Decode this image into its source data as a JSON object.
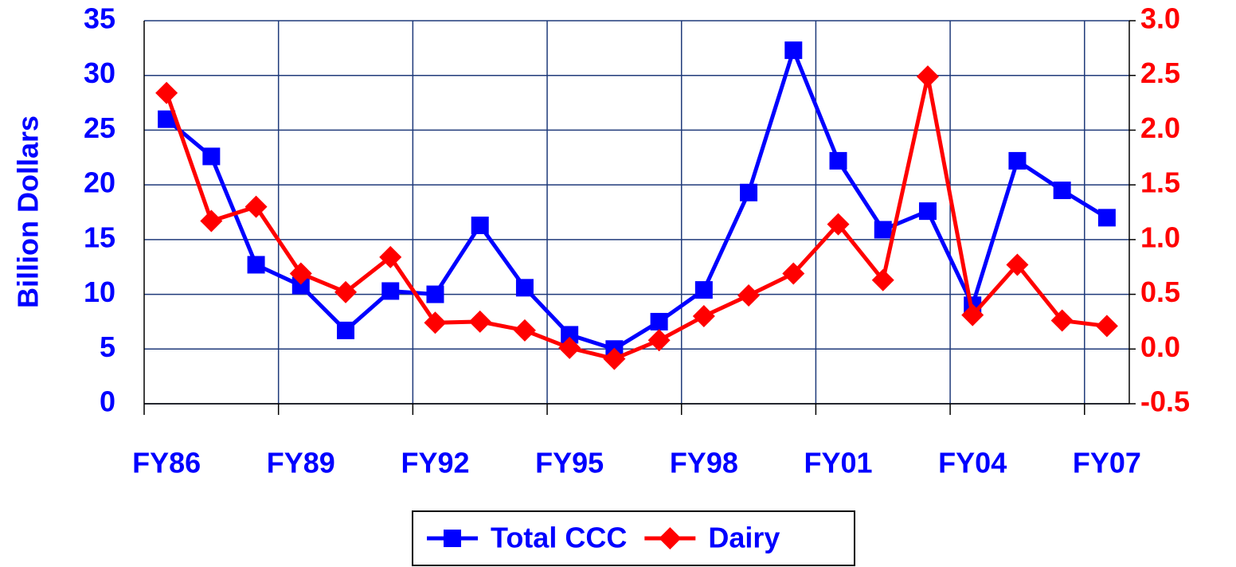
{
  "chart_data": {
    "type": "line",
    "y_label": "Billion Dollars",
    "categories": [
      "FY86",
      null,
      null,
      "FY89",
      null,
      null,
      "FY92",
      null,
      null,
      "FY95",
      null,
      null,
      "FY98",
      null,
      null,
      "FY01",
      null,
      null,
      "FY04",
      null,
      null,
      "FY07"
    ],
    "series": [
      {
        "name": "Total CCC",
        "color": "#0000ff",
        "marker": "square",
        "axis": "y",
        "values": [
          26,
          22.6,
          12.7,
          10.8,
          6.7,
          10.3,
          10.0,
          16.3,
          10.6,
          6.3,
          5.0,
          7.5,
          10.4,
          19.3,
          32.3,
          22.2,
          15.9,
          17.6,
          9.0,
          22.2,
          19.5,
          17.0
        ]
      },
      {
        "name": "Dairy",
        "color": "#ff0000",
        "marker": "diamond",
        "axis": "y2",
        "values": [
          2.34,
          1.17,
          1.3,
          0.69,
          0.52,
          0.84,
          0.24,
          0.25,
          0.17,
          0.01,
          -0.09,
          0.08,
          0.3,
          0.49,
          0.69,
          1.14,
          0.63,
          2.49,
          0.31,
          0.77,
          0.26,
          0.21
        ]
      }
    ],
    "ylim": [
      0,
      35
    ],
    "yticks": [
      0,
      5,
      10,
      15,
      20,
      25,
      30,
      35
    ],
    "y2lim": [
      -0.5,
      3.0
    ],
    "y2ticks": [
      {
        "value": -0.5,
        "label": "-0.5"
      },
      {
        "value": 0,
        "label": "0.0"
      },
      {
        "value": 0.5,
        "label": "0.5"
      },
      {
        "value": 1,
        "label": "1.0"
      },
      {
        "value": 1.5,
        "label": "1.5"
      },
      {
        "value": 2,
        "label": "2.0"
      },
      {
        "value": 2.5,
        "label": "2.5"
      },
      {
        "value": 3,
        "label": "3.0"
      }
    ],
    "grid": true,
    "legend": "bottom"
  }
}
